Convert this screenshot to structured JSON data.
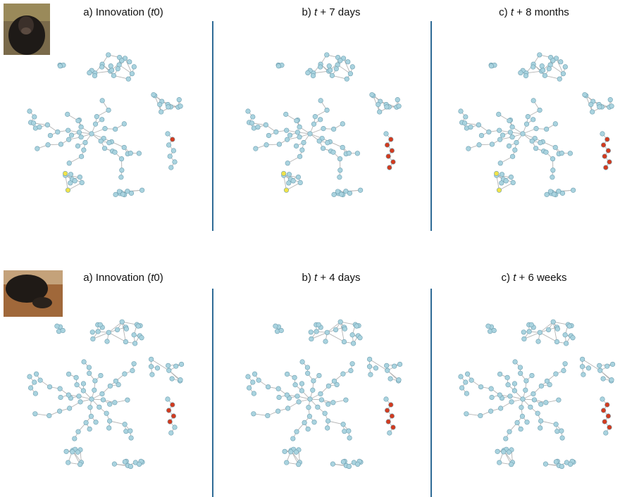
{
  "rows": [
    {
      "panels": [
        {
          "title": [
            {
              "text": "a) Innovation ("
            },
            {
              "text": "t",
              "italic": true
            },
            {
              "text": "0)"
            }
          ]
        },
        {
          "title": [
            {
              "text": "b) "
            },
            {
              "text": "t",
              "italic": true
            },
            {
              "text": " + 7 days"
            }
          ]
        },
        {
          "title": [
            {
              "text": "c) "
            },
            {
              "text": "t",
              "italic": true
            },
            {
              "text": " + 8 months"
            }
          ]
        }
      ]
    },
    {
      "panels": [
        {
          "title": [
            {
              "text": "a) Innovation ("
            },
            {
              "text": "t",
              "italic": true
            },
            {
              "text": "0)"
            }
          ]
        },
        {
          "title": [
            {
              "text": "b) "
            },
            {
              "text": "t",
              "italic": true
            },
            {
              "text": " + 4 days"
            }
          ]
        },
        {
          "title": [
            {
              "text": "c) "
            },
            {
              "text": "t",
              "italic": true
            },
            {
              "text": " + 6 weeks"
            }
          ]
        }
      ]
    }
  ]
}
